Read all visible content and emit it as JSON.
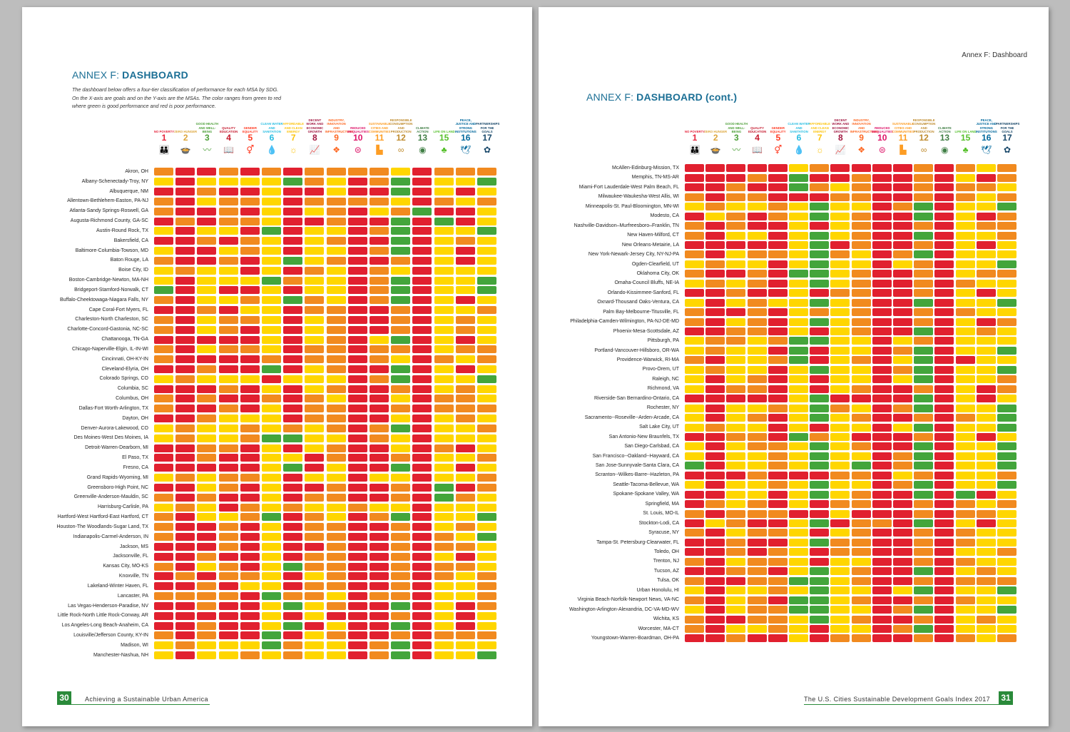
{
  "colors": {
    "G": "#43a53b",
    "Y": "#ffd600",
    "O": "#f18a1f",
    "R": "#e1202f"
  },
  "goals": [
    {
      "num": "1",
      "name": "No Poverty",
      "color": "#e5243b",
      "icon": "people-icon"
    },
    {
      "num": "2",
      "name": "Zero Hunger",
      "color": "#dda63a",
      "icon": "bowl-icon"
    },
    {
      "num": "3",
      "name": "Good Health and Well-Being",
      "color": "#4c9f38",
      "icon": "heartbeat-icon"
    },
    {
      "num": "4",
      "name": "Quality Education",
      "color": "#c5192d",
      "icon": "book-icon"
    },
    {
      "num": "5",
      "name": "Gender Equality",
      "color": "#ff3a21",
      "icon": "gender-icon"
    },
    {
      "num": "6",
      "name": "Clean Water and Sanitation",
      "color": "#26bde2",
      "icon": "water-drop-icon"
    },
    {
      "num": "7",
      "name": "Affordable and Clean Energy",
      "color": "#fcc30b",
      "icon": "sun-icon"
    },
    {
      "num": "8",
      "name": "Decent Work and Economic Growth",
      "color": "#a21942",
      "icon": "growth-chart-icon"
    },
    {
      "num": "9",
      "name": "Industry, Innovation and Infrastructure",
      "color": "#fd6925",
      "icon": "cubes-icon"
    },
    {
      "num": "10",
      "name": "Reduced Inequalities",
      "color": "#dd1367",
      "icon": "equals-icon"
    },
    {
      "num": "11",
      "name": "Sustainable Cities and Communities",
      "color": "#fd9d24",
      "icon": "city-icon"
    },
    {
      "num": "12",
      "name": "Responsible Consumption and Production",
      "color": "#bf8b2e",
      "icon": "infinity-icon"
    },
    {
      "num": "13",
      "name": "Climate Action",
      "color": "#3f7e44",
      "icon": "eye-globe-icon"
    },
    {
      "num": "15",
      "name": "Life On Land",
      "color": "#56c02b",
      "icon": "tree-icon"
    },
    {
      "num": "16",
      "name": "Peace, Justice and Strong Institutions",
      "color": "#00689d",
      "icon": "dove-icon"
    },
    {
      "num": "17",
      "name": "Partnerships for the Goals",
      "color": "#19486a",
      "icon": "flower-icon"
    }
  ],
  "left_page": {
    "title_prefix": "ANNEX F:",
    "title_bold": "DASHBOARD",
    "intro": "The dashboard below offers a four-tier classification of performance for each MSA by SDG. On the X-axis are goals and on the Y-axis are the MSAs. The color ranges from green to red where green is good performance and red is poor performance.",
    "page_number": "30",
    "footer": "Achieving a Sustainable Urban America",
    "rows": [
      {
        "name": "Akron, OH",
        "cells": "ORROROROOOOYROOO"
      },
      {
        "name": "Albany-Schenectady-Troy, NY",
        "cells": "YRYYYYGOYROGRYYG"
      },
      {
        "name": "Albuquerque, NM",
        "cells": "RRORRYRRYRRGRYRY"
      },
      {
        "name": "Allentown-Bethlehem-Easton, PA-NJ",
        "cells": "ORYOOYROOOOYROYO"
      },
      {
        "name": "Atlanta-Sandy Springs-Roswell, GA",
        "cells": "ORRORYRYORYOGRRY"
      },
      {
        "name": "Augusta-Richmond County, GA-SC",
        "cells": "ROROOYRRORRGRGRY"
      },
      {
        "name": "Austin-Round Rock, TX",
        "cells": "YRYYRGRYYROGRYYG"
      },
      {
        "name": "Bakersfield, CA",
        "cells": "RROROYRYORRGRYOY"
      },
      {
        "name": "Baltimore-Columbia-Towson, MD",
        "cells": "YRRYOYRYYROGRYRY"
      },
      {
        "name": "Baton Rouge, LA",
        "cells": "ORRORYGYORRORYRY"
      },
      {
        "name": "Boise City, ID",
        "cells": "YOYYRYROYROYRYYY"
      },
      {
        "name": "Boston-Cambridge-Newton, MA-NH",
        "cells": "YRYYYGOYYROGRYYG"
      },
      {
        "name": "Bridgeport-Stamford-Norwalk, CT",
        "cells": "GRYRRYRYYROGRYYG"
      },
      {
        "name": "Buffalo-Cheektowaga-Niagara Falls, NY",
        "cells": "ORYYOYGOYROGRYRY"
      },
      {
        "name": "Cape Coral-Fort Myers, FL",
        "cells": "RRORYYROORRORYYO"
      },
      {
        "name": "Charleston-North Charleston, SC",
        "cells": "ORYOOYRYORRORYOY"
      },
      {
        "name": "Charlotte-Concord-Gastonia, NC-SC",
        "cells": "ORYORYRYORRORYOY"
      },
      {
        "name": "Chattanooga, TN-GA",
        "cells": "RRRRRYRYORYGRYRY"
      },
      {
        "name": "Chicago-Naperville-Elgin, IL-IN-WI",
        "cells": "ORYOOYROOROORYOO"
      },
      {
        "name": "Cincinnati, OH-KY-IN",
        "cells": "ORRRROROOROYROYO"
      },
      {
        "name": "Cleveland-Elyria, OH",
        "cells": "RRORRGRYORRGRYRY"
      },
      {
        "name": "Colorado Springs, CO",
        "cells": "YOYYYRYYYROGRYYG"
      },
      {
        "name": "Columbia, SC",
        "cells": "RRRORYRYORRORYOY"
      },
      {
        "name": "Columbus, OH",
        "cells": "ORORROROYRRYROOY"
      },
      {
        "name": "Dallas-Fort Worth-Arlington, TX",
        "cells": "ORRORYROORROROOO"
      },
      {
        "name": "Dayton, OH",
        "cells": "RROYYYROORRYRYOY"
      },
      {
        "name": "Denver-Aurora-Lakewood, CO",
        "cells": "YOYYOYOYOROGRYYO"
      },
      {
        "name": "Des Moines-West Des Moines, IA",
        "cells": "YOYYOGGYYROYRYYY"
      },
      {
        "name": "Detroit-Warren-Dearborn, MI",
        "cells": "RROORYRYORRYRORY"
      },
      {
        "name": "El Paso, TX",
        "cells": "RRORRYYRORRORYYO"
      },
      {
        "name": "Fresno, CA",
        "cells": "RRRRRYGRYRRGRYRY"
      },
      {
        "name": "Grand Rapids-Wyoming, MI",
        "cells": "YOYOOYRYYRYYRYYO"
      },
      {
        "name": "Greensboro-High Point, NC",
        "cells": "RRYORYRRORRORGRO"
      },
      {
        "name": "Greenville-Anderson-Mauldin, SC",
        "cells": "ORORRYROORRORGOY"
      },
      {
        "name": "Harrisburg-Carlisle, PA",
        "cells": "YOYROYOYYOYYRYYY"
      },
      {
        "name": "Hartford-West Hartford-East Hartford, CT",
        "cells": "ORYYOGROYROGRYYG"
      },
      {
        "name": "Houston-The Woodlands-Sugar Land, TX",
        "cells": "ORRORYROORRORYOY"
      },
      {
        "name": "Indianapolis-Carmel-Anderson, IN",
        "cells": "ORRORYROORROROYG"
      },
      {
        "name": "Jackson, MS",
        "cells": "RRRORYRRORROROOY"
      },
      {
        "name": "Jacksonville, FL",
        "cells": "RRORRYROORRORYRY"
      },
      {
        "name": "Kansas City, MO-KS",
        "cells": "ORYORYGOORROROOY"
      },
      {
        "name": "Knoxville, TN",
        "cells": "ROROOYRYORROROYO"
      },
      {
        "name": "Lakeland-Winter Haven, FL",
        "cells": "RRORYYROORRORYYO"
      },
      {
        "name": "Lancaster, PA",
        "cells": "OOOORGOOYROORYYO"
      },
      {
        "name": "Las Vegas-Henderson-Paradise, NV",
        "cells": "RRORRYGYORRGRYRO"
      },
      {
        "name": "Little Rock-North Little Rock-Conway, AR",
        "cells": "RRRRRYRYRRRORYRY"
      },
      {
        "name": "Los Angeles-Long Beach-Anaheim, CA",
        "cells": "RRORRYGRYRRGRYRY"
      },
      {
        "name": "Louisville/Jefferson County, KY-IN",
        "cells": "ORORRGRYORROROOO"
      },
      {
        "name": "Madison, WI",
        "cells": "YOYYYGOYYROGRYYY"
      },
      {
        "name": "Manchester-Nashua, NH",
        "cells": "YRYYOYOYYROGRYYG"
      }
    ]
  },
  "right_page": {
    "running_head": "Annex F: Dashboard",
    "title_prefix": "ANNEX F:",
    "title_bold": "DASHBOARD (cont.)",
    "page_number": "31",
    "footer": "The U.S. Cities Sustainable Development Goals Index 2017",
    "rows": [
      {
        "name": "McAllen-Edinburg-Mission, TX",
        "cells": "RRRRRYORRRROROYO"
      },
      {
        "name": "Memphis, TN-MS-AR",
        "cells": "RRRORGRRORRORYRO"
      },
      {
        "name": "Miami-Fort Lauderdale-West Palm Beach, FL",
        "cells": "RRORRGOYORROROOY"
      },
      {
        "name": "Milwaukee-Waukesha-West Allis, WI",
        "cells": "OROORRROORROROYO"
      },
      {
        "name": "Minneapolis-St. Paul-Bloomington, MN-WI",
        "cells": "YOYYOYGYYROGRYYG"
      },
      {
        "name": "Modesto, CA",
        "cells": "RYOROYGYORRGRYRO"
      },
      {
        "name": "Nashville-Davidson–Murfreesboro–Franklin, TN",
        "cells": "ORORRYRYORRORYOO"
      },
      {
        "name": "New Haven-Milford, CT",
        "cells": "ORYYRYGYORRGRYYO"
      },
      {
        "name": "New Orleans-Metairie, LA",
        "cells": "RRRRRYGRORRORYRY"
      },
      {
        "name": "New York-Newark-Jersey City, NY-NJ-PA",
        "cells": "ORYOOYGOYROGRYYY"
      },
      {
        "name": "Ogden-Clearfield, UT",
        "cells": "YOYYRYGYYRYORYYG"
      },
      {
        "name": "Oklahoma City, OK",
        "cells": "ORRORGGYORRORYOO"
      },
      {
        "name": "Omaha-Council Bluffs, NE-IA",
        "cells": "YOYORYGYORROROYY"
      },
      {
        "name": "Orlando-Kissimmee-Sanford, FL",
        "cells": "RRORRYROORRORYRY"
      },
      {
        "name": "Oxnard-Thousand Oaks-Ventura, CA",
        "cells": "YRYOYYGYORRGRYYG"
      },
      {
        "name": "Palm Bay-Melbourne-Titusville, FL",
        "cells": "ORRORYOYORROROYY"
      },
      {
        "name": "Philadelphia-Camden-Wilmington, PA-NJ-DE-MD",
        "cells": "ORYORYGYORRORYRO"
      },
      {
        "name": "Phoenix-Mesa-Scottsdale, AZ",
        "cells": "RROORYRYORRGRYOY"
      },
      {
        "name": "Pittsburgh, PA",
        "cells": "YOOYOGGYYRYORYYY"
      },
      {
        "name": "Portland-Vancouver-Hillsboro, OR-WA",
        "cells": "YOYYRGRYYROGRYYG"
      },
      {
        "name": "Providence-Warwick, RI-MA",
        "cells": "ORYYOGRYORYGRRYY"
      },
      {
        "name": "Provo-Orem, UT",
        "cells": "YOYYRYGYYROGRYYG"
      },
      {
        "name": "Raleigh, NC",
        "cells": "YRYORYRYYRYGRYYO"
      },
      {
        "name": "Richmond, VA",
        "cells": "YROORYRYORRORYRO"
      },
      {
        "name": "Riverside-San Bernardino-Ontario, CA",
        "cells": "RRRRRYGRRRRGRYRY"
      },
      {
        "name": "Rochester, NY",
        "cells": "YRYYOYGOYROGRYYG"
      },
      {
        "name": "Sacramento--Roseville--Arden-Arcade, CA",
        "cells": "YRYORYGYORROROYG"
      },
      {
        "name": "Salt Lake City, UT",
        "cells": "YOYYRYRYYRYGRYYG"
      },
      {
        "name": "San Antonio-New Braunfels, TX",
        "cells": "RROORGOYRRRORYRY"
      },
      {
        "name": "San Diego-Carlsbad, CA",
        "cells": "YRYOOYGYORRGRYYG"
      },
      {
        "name": "San Francisco--Oakland--Hayward, CA",
        "cells": "YRYYOYGYYROGRYYG"
      },
      {
        "name": "San Jose-Sunnyvale-Santa Clara, CA",
        "cells": "GRYYOYGYGROGRYYG"
      },
      {
        "name": "Scranton--Wilkes-Barre--Hazleton, PA",
        "cells": "RRRORRROORYORYYO"
      },
      {
        "name": "Seattle-Tacoma-Bellevue, WA",
        "cells": "YRYYOYGYYROGRYYG"
      },
      {
        "name": "Spokane-Spokane Valley, WA",
        "cells": "RRYYRYGYORRGRGRY"
      },
      {
        "name": "Springfield, MA",
        "cells": "ROYORYROORROROYO"
      },
      {
        "name": "St. Louis, MO-IL",
        "cells": "OROOORRYRRROROOY"
      },
      {
        "name": "Stockton-Lodi, CA",
        "cells": "RYORRYGROORGRYRY"
      },
      {
        "name": "Syracuse, NY",
        "cells": "ORYOOYRYORROROYY"
      },
      {
        "name": "Tampa-St. Petersburg-Clearwater, FL",
        "cells": "RRORRYGOORROROYY"
      },
      {
        "name": "Toledo, OH",
        "cells": "RROROYROORRORYYO"
      },
      {
        "name": "Trenton, NJ",
        "cells": "ORYOOYRYYRROROYY"
      },
      {
        "name": "Tucson, AZ",
        "cells": "RROORYGYORRGRYOY"
      },
      {
        "name": "Tulsa, OK",
        "cells": "ORROOGGYORROROOO"
      },
      {
        "name": "Urban Honolulu, HI",
        "cells": "YRYYOYGYYRYGRYYG"
      },
      {
        "name": "Virginia Beach-Norfolk-Newport News, VA-NC",
        "cells": "ORYORGGYORROROYY"
      },
      {
        "name": "Washington-Arlington-Alexandria, DC-VA-MD-WV",
        "cells": "YRYOOGGYYROGRYYG"
      },
      {
        "name": "Wichita, KS",
        "cells": "ORROOYGYORRORYOY"
      },
      {
        "name": "Worcester, MA-CT",
        "cells": "ORYYOYRYYROGRYYY"
      },
      {
        "name": "Youngstown-Warren-Boardman, OH-PA",
        "cells": "RRORRYROORROROYO"
      }
    ]
  }
}
